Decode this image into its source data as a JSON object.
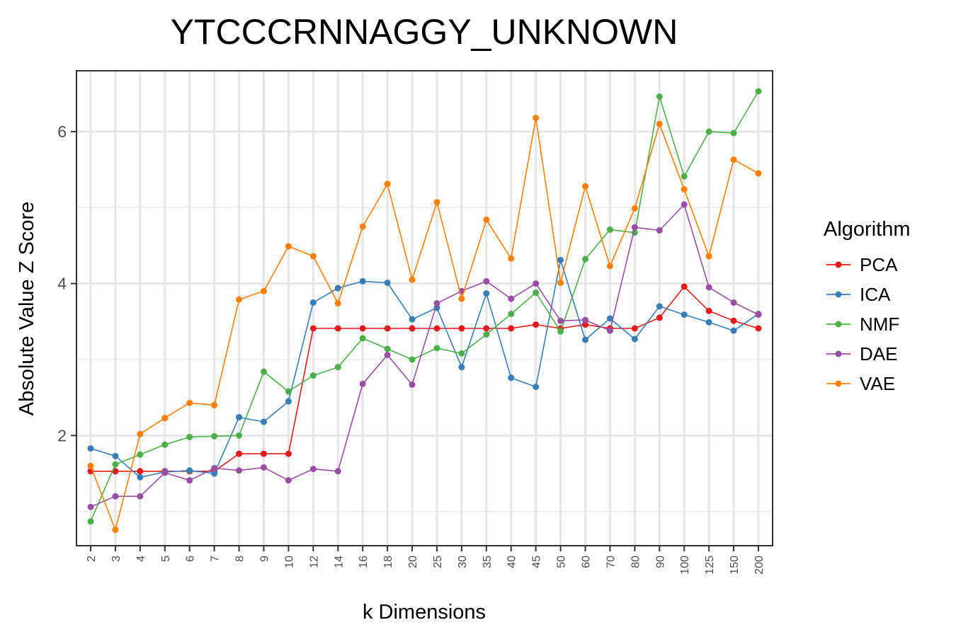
{
  "chart_data": {
    "type": "line",
    "title": "YTCCCRNNAGGY_UNKNOWN",
    "xlabel": "k Dimensions",
    "ylabel": "Absolute Value Z Score",
    "categories": [
      "2",
      "3",
      "4",
      "5",
      "6",
      "7",
      "8",
      "9",
      "10",
      "12",
      "14",
      "16",
      "18",
      "20",
      "25",
      "30",
      "35",
      "40",
      "45",
      "50",
      "60",
      "70",
      "80",
      "90",
      "100",
      "125",
      "150",
      "200"
    ],
    "ylim": [
      0.55,
      6.8
    ],
    "yticks": [
      2,
      4,
      6
    ],
    "grid": true,
    "legend": {
      "title": "Algorithm",
      "position": "right"
    },
    "series": [
      {
        "name": "PCA",
        "color": "#E41A1C",
        "values": [
          1.53,
          1.53,
          1.53,
          1.53,
          1.53,
          1.53,
          1.76,
          1.76,
          1.76,
          3.41,
          3.41,
          3.41,
          3.41,
          3.41,
          3.41,
          3.41,
          3.41,
          3.41,
          3.46,
          3.41,
          3.46,
          3.41,
          3.41,
          3.55,
          3.96,
          3.64,
          3.51,
          3.41
        ]
      },
      {
        "name": "ICA",
        "color": "#377EB8",
        "values": [
          1.83,
          1.73,
          1.45,
          1.52,
          1.54,
          1.5,
          2.24,
          2.18,
          2.45,
          3.75,
          3.94,
          4.03,
          4.01,
          3.53,
          3.68,
          2.9,
          3.87,
          2.76,
          2.64,
          4.31,
          3.26,
          3.54,
          3.27,
          3.7,
          3.59,
          3.49,
          3.38,
          3.6
        ]
      },
      {
        "name": "NMF",
        "color": "#4DAF4A",
        "values": [
          0.87,
          1.62,
          1.75,
          1.88,
          1.98,
          1.99,
          2.0,
          2.84,
          2.58,
          2.79,
          2.9,
          3.28,
          3.14,
          3.0,
          3.15,
          3.08,
          3.33,
          3.6,
          3.88,
          3.37,
          4.32,
          4.71,
          4.67,
          6.46,
          5.41,
          6.0,
          5.98,
          6.53
        ]
      },
      {
        "name": "DAE",
        "color": "#984EA3",
        "values": [
          1.06,
          1.2,
          1.2,
          1.51,
          1.41,
          1.57,
          1.54,
          1.58,
          1.41,
          1.56,
          1.53,
          2.68,
          3.06,
          2.67,
          3.74,
          3.9,
          4.03,
          3.8,
          4.0,
          3.51,
          3.52,
          3.38,
          4.74,
          4.7,
          5.04,
          3.95,
          3.75,
          3.59
        ]
      },
      {
        "name": "VAE",
        "color": "#FF7F00",
        "values": [
          1.6,
          0.76,
          2.02,
          2.23,
          2.43,
          2.4,
          3.79,
          3.9,
          4.49,
          4.36,
          3.74,
          4.75,
          5.31,
          4.05,
          5.07,
          3.8,
          4.84,
          4.33,
          6.18,
          4.01,
          5.28,
          4.23,
          4.99,
          6.1,
          5.24,
          4.36,
          5.63,
          5.45
        ]
      }
    ]
  }
}
